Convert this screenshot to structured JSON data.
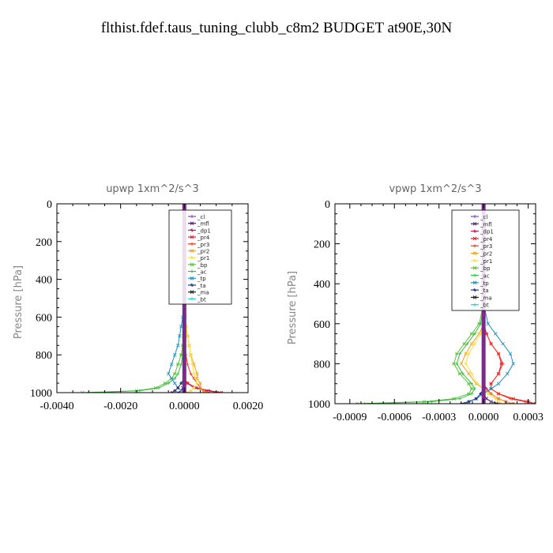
{
  "page_title": "flthist.fdef.taus_tuning_clubb_c8m2  BUDGET at90E,30N",
  "colors": {
    "_cl": "#8a3fb8",
    "_mfl": "#4b1a70",
    "_dp1": "#c0205a",
    "_pr4": "#e02030",
    "_pr3": "#ff3020",
    "_pr2": "#f0a020",
    "_pr1": "#f8e040",
    "_bp": "#60c040",
    "_ac": "#30c040",
    "_tp": "#1a90c0",
    "_ta": "#203080",
    "_ma": "#202020",
    "_bt": "#20d0e0"
  },
  "chart_data": [
    {
      "type": "line",
      "title": "upwp   1xm^2/s^3",
      "ylabel": "Pressure  [hPa]",
      "xlabel": "",
      "xlim": [
        -0.004,
        0.002
      ],
      "ylim": [
        1000,
        0
      ],
      "x_ticks": [
        "-0.0040",
        "-0.0020",
        "0.0000",
        "0.0020"
      ],
      "x_tick_values": [
        -0.004,
        -0.002,
        0.0,
        0.002
      ],
      "y_ticks": [
        "0",
        "200",
        "400",
        "600",
        "800",
        "1000"
      ],
      "y_tick_values": [
        0,
        200,
        400,
        600,
        800,
        1000
      ],
      "grid": false,
      "legend_position": "top-right",
      "pressure": [
        0,
        100,
        200,
        300,
        400,
        500,
        600,
        650,
        700,
        750,
        800,
        850,
        900,
        925,
        950,
        975,
        990,
        1000
      ],
      "series": [
        {
          "name": "_cl",
          "values": [
            0,
            0,
            0,
            0,
            0,
            0,
            0,
            0,
            0,
            0,
            0,
            0,
            0,
            0,
            0,
            0,
            0,
            0
          ]
        },
        {
          "name": "_mfl",
          "values": [
            0,
            0,
            0,
            0,
            0,
            0,
            0,
            0,
            0,
            0,
            0,
            0,
            0,
            0,
            0,
            -5e-05,
            -0.0001,
            -0.0002
          ]
        },
        {
          "name": "_dp1",
          "values": [
            0,
            0,
            0,
            0,
            0,
            0,
            0,
            0,
            0,
            0,
            0,
            0,
            0,
            0,
            0.0001,
            0.0004,
            0.0008,
            0.0012
          ]
        },
        {
          "name": "_pr4",
          "values": [
            0,
            0,
            0,
            0,
            0,
            0,
            0,
            0,
            0,
            0,
            0,
            0,
            0,
            0,
            0.0001,
            0.0003,
            0.0007,
            0.0011
          ]
        },
        {
          "name": "_pr3",
          "values": [
            0,
            0,
            0,
            0,
            0,
            0,
            0,
            0,
            0,
            2e-05,
            5e-05,
            0.0001,
            0.0002,
            0.0003,
            0.0004,
            0.0005,
            0.0006,
            0.0008
          ]
        },
        {
          "name": "_pr2",
          "values": [
            0,
            0,
            0,
            0,
            0,
            0,
            2e-05,
            5e-05,
            0.0001,
            0.00015,
            0.0002,
            0.0003,
            0.0004,
            0.0004,
            0.0005,
            0.0005,
            0.0006,
            0.0007
          ]
        },
        {
          "name": "_pr1",
          "values": [
            0,
            0,
            0,
            0,
            0,
            0,
            3e-05,
            6e-05,
            0.0001,
            0.00015,
            0.0002,
            0.00025,
            0.0003,
            0.00035,
            0.0004,
            0.0003,
            0.0002,
            0.0001
          ]
        },
        {
          "name": "_bp",
          "values": [
            0,
            0,
            0,
            0,
            0,
            0,
            0,
            0,
            -2e-05,
            -5e-05,
            -0.0001,
            -0.0002,
            -0.0003,
            -0.0004,
            -0.0006,
            -0.0009,
            -0.0015,
            -0.0032
          ]
        },
        {
          "name": "_ac",
          "values": [
            0,
            0,
            0,
            0,
            0,
            0,
            0,
            0,
            -1e-05,
            -3e-05,
            -5e-05,
            -0.0001,
            -0.0002,
            -0.0003,
            -0.0005,
            -0.0008,
            -0.0014,
            -0.003
          ]
        },
        {
          "name": "_tp",
          "values": [
            0,
            0,
            0,
            0,
            0,
            0,
            -5e-05,
            -0.0001,
            -0.00015,
            -0.0002,
            -0.0003,
            -0.0004,
            -0.0005,
            -0.0004,
            -0.0003,
            -0.0002,
            -0.0001,
            0
          ]
        },
        {
          "name": "_ta",
          "values": [
            0,
            0,
            0,
            0,
            0,
            0,
            0,
            0,
            0,
            0,
            0,
            0,
            0,
            0,
            -0.0001,
            -0.0002,
            -0.0003,
            -0.0004
          ]
        },
        {
          "name": "_ma",
          "values": [
            0,
            0,
            0,
            0,
            0,
            0,
            0,
            0,
            0,
            0,
            0,
            0,
            0,
            0,
            0,
            0,
            0,
            0
          ]
        },
        {
          "name": "_bt",
          "values": [
            0,
            0,
            0,
            0,
            0,
            0,
            0,
            0,
            0,
            0,
            0,
            0,
            0,
            0,
            0,
            0,
            0,
            0
          ]
        }
      ]
    },
    {
      "type": "line",
      "title": "vpwp   1xm^2/s^3",
      "ylabel": "Pressure  [hPa]",
      "xlabel": "",
      "xlim": [
        -0.001,
        0.00035
      ],
      "ylim": [
        1000,
        0
      ],
      "x_ticks": [
        "-0.0009",
        "-0.0006",
        "-0.0003",
        "0.0000",
        "0.0003"
      ],
      "x_tick_values": [
        -0.0009,
        -0.0006,
        -0.0003,
        0.0,
        0.0003
      ],
      "y_ticks": [
        "0",
        "200",
        "400",
        "600",
        "800",
        "1000"
      ],
      "y_tick_values": [
        0,
        200,
        400,
        600,
        800,
        1000
      ],
      "grid": false,
      "legend_position": "top-right",
      "pressure": [
        0,
        100,
        200,
        300,
        400,
        500,
        600,
        650,
        700,
        750,
        800,
        850,
        900,
        925,
        950,
        975,
        990,
        1000
      ],
      "series": [
        {
          "name": "_cl",
          "values": [
            0,
            0,
            0,
            0,
            0,
            0,
            0,
            0,
            0,
            0,
            0,
            0,
            0,
            0,
            0,
            0,
            0,
            0
          ]
        },
        {
          "name": "_mfl",
          "values": [
            0,
            0,
            0,
            0,
            0,
            0,
            0,
            0,
            0,
            0,
            0,
            0,
            0,
            0,
            0,
            2e-05,
            5e-05,
            0.0001
          ]
        },
        {
          "name": "_dp1",
          "values": [
            0,
            0,
            0,
            0,
            0,
            0,
            0,
            0,
            0,
            0,
            0,
            0,
            0,
            2e-05,
            5e-05,
            0.0001,
            0.00015,
            0.0002
          ]
        },
        {
          "name": "_pr4",
          "values": [
            0,
            0,
            0,
            0,
            0,
            0,
            0,
            2e-05,
            5e-05,
            0.0001,
            0.00012,
            0.0001,
            5e-05,
            5e-05,
            0.0001,
            0.0002,
            0.0003,
            0.00035
          ]
        },
        {
          "name": "_pr3",
          "values": [
            0,
            0,
            0,
            0,
            0,
            0,
            0,
            2e-05,
            5e-05,
            0.0001,
            0.00013,
            0.0001,
            5e-05,
            5e-05,
            0.0001,
            0.00018,
            0.00028,
            0.00035
          ]
        },
        {
          "name": "_pr2",
          "values": [
            0,
            0,
            0,
            0,
            0,
            0,
            0,
            -3e-05,
            -8e-05,
            -0.00012,
            -0.00015,
            -0.0001,
            -5e-05,
            0,
            5e-05,
            0.0001,
            0.00015,
            0.0002
          ]
        },
        {
          "name": "_pr1",
          "values": [
            0,
            0,
            0,
            0,
            0,
            0,
            0,
            -2e-05,
            -6e-05,
            -0.0001,
            -0.00012,
            -8e-05,
            -4e-05,
            0,
            3e-05,
            8e-05,
            0.0001,
            0.00012
          ]
        },
        {
          "name": "_bp",
          "values": [
            0,
            0,
            0,
            0,
            0,
            0,
            -3e-05,
            -8e-05,
            -0.00013,
            -0.00018,
            -0.0002,
            -0.00016,
            -0.0001,
            -8e-05,
            -0.0001,
            -0.0002,
            -0.0004,
            -0.00085
          ]
        },
        {
          "name": "_ac",
          "values": [
            0,
            0,
            0,
            0,
            0,
            0,
            -2e-05,
            -6e-05,
            -0.00011,
            -0.00016,
            -0.00018,
            -0.00014,
            -8e-05,
            -6e-05,
            -8e-05,
            -0.00016,
            -0.00035,
            -0.0008
          ]
        },
        {
          "name": "_tp",
          "values": [
            0,
            0,
            0,
            0,
            0,
            0,
            3e-05,
            8e-05,
            0.00013,
            0.00018,
            0.0002,
            0.00016,
            0.0001,
            5e-05,
            0,
            -5e-05,
            -0.0001,
            -0.00012
          ]
        },
        {
          "name": "_ta",
          "values": [
            0,
            0,
            0,
            0,
            0,
            0,
            0,
            0,
            0,
            0,
            0,
            0,
            0,
            0,
            -2e-05,
            -5e-05,
            -0.0001,
            -0.00015
          ]
        },
        {
          "name": "_ma",
          "values": [
            0,
            0,
            0,
            0,
            0,
            0,
            0,
            0,
            0,
            0,
            0,
            0,
            0,
            0,
            0,
            0,
            0,
            0
          ]
        },
        {
          "name": "_bt",
          "values": [
            0,
            0,
            0,
            0,
            0,
            0,
            0,
            0,
            0,
            0,
            0,
            0,
            0,
            0,
            0,
            0,
            0,
            0
          ]
        }
      ]
    }
  ]
}
